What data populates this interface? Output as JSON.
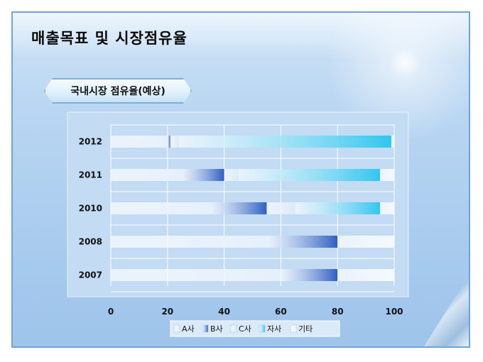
{
  "title": "매출목표 및 시장점유율",
  "subtitle": "국내시장 점유율(예상)",
  "chart_data": {
    "type": "bar",
    "orientation": "horizontal",
    "stacked": true,
    "categories": [
      "2012",
      "2011",
      "2010",
      "2008",
      "2007"
    ],
    "series": [
      {
        "name": "A사",
        "values": [
          20,
          25,
          35,
          55,
          60
        ],
        "color": "#e4f0fc"
      },
      {
        "name": "B사",
        "values": [
          1,
          15,
          20,
          25,
          20
        ],
        "color": "#2f5fc0"
      },
      {
        "name": "C사",
        "values": [
          3,
          5,
          10,
          0,
          0
        ],
        "color": "#dbeafa"
      },
      {
        "name": "자사",
        "values": [
          75,
          50,
          30,
          0,
          0
        ],
        "color": "#33c6ee"
      },
      {
        "name": "기타",
        "values": [
          1,
          5,
          5,
          20,
          20
        ],
        "color": "#f2faff"
      }
    ],
    "xlim": [
      0,
      100
    ],
    "xticks": [
      "0",
      "20",
      "40",
      "60",
      "80",
      "100"
    ],
    "grid": true,
    "legend_position": "bottom"
  }
}
